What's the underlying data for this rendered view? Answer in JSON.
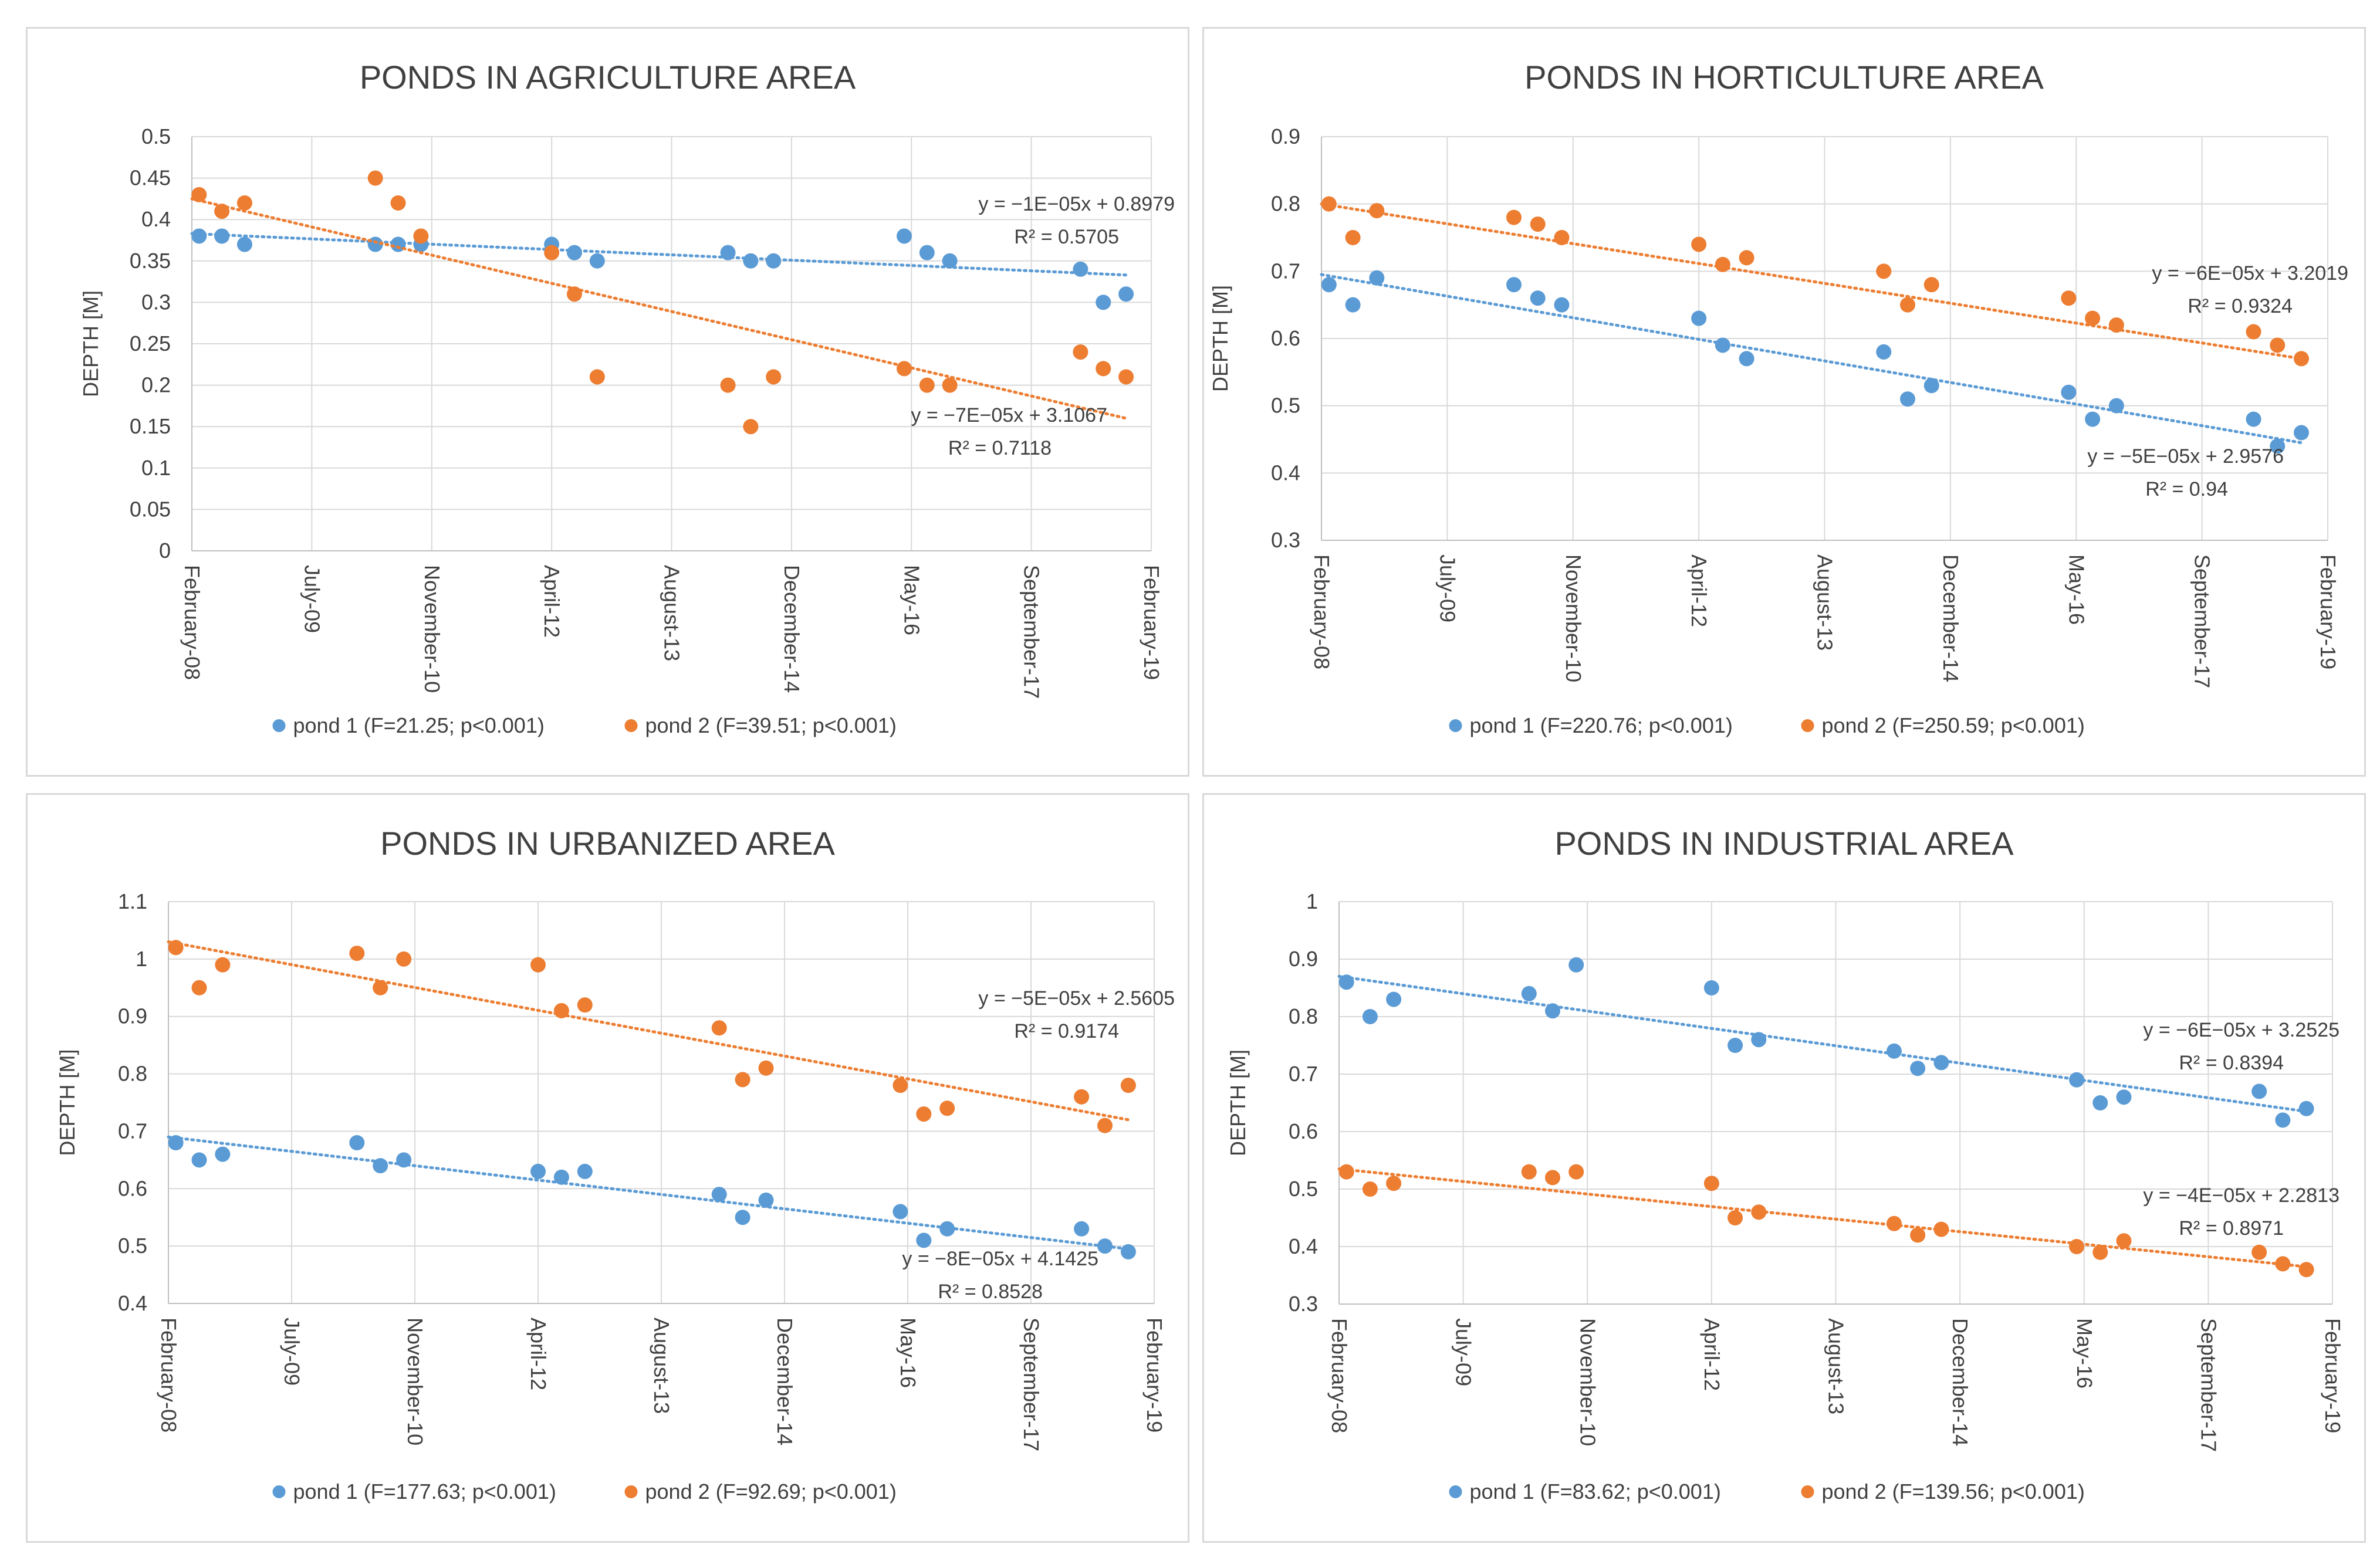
{
  "colors": {
    "pond1": "#5b9bd5",
    "pond2": "#ed7d31"
  },
  "x_categories": [
    "February-08",
    "July-09",
    "November-10",
    "April-12",
    "August-13",
    "December-14",
    "May-16",
    "September-17",
    "February-19"
  ],
  "chart_data": [
    {
      "type": "scatter",
      "title": "PONDS IN AGRICULTURE AREA",
      "xlabel": "",
      "ylabel": "DEPTH [M]",
      "ylim": [
        0,
        0.5
      ],
      "yticks": [
        "0",
        "0.05",
        "0.1",
        "0.15",
        "0.2",
        "0.25",
        "0.3",
        "0.35",
        "0.4",
        "0.45",
        "0.5"
      ],
      "xlim": [
        0,
        8
      ],
      "xticks": [
        0,
        1,
        2,
        3,
        4,
        5,
        6,
        7,
        8
      ],
      "series": [
        {
          "name": "pond 1 (F=21.25; p<0.001)",
          "color_key": "pond1",
          "x": [
            0.06,
            0.25,
            0.44,
            1.53,
            1.72,
            1.91,
            3.0,
            3.19,
            3.38,
            4.47,
            4.66,
            4.85,
            5.94,
            6.13,
            6.32,
            7.41,
            7.6,
            7.79
          ],
          "y": [
            0.38,
            0.38,
            0.37,
            0.37,
            0.37,
            0.37,
            0.37,
            0.36,
            0.35,
            0.36,
            0.35,
            0.35,
            0.38,
            0.36,
            0.35,
            0.34,
            0.3,
            0.31
          ],
          "trend": {
            "x0": 0.0,
            "y0": 0.383,
            "x1": 7.79,
            "y1": 0.333,
            "equation": "y = −1E−05x + 0.8979",
            "r2": "R² = 0.5705"
          }
        },
        {
          "name": "pond 2 (F=39.51; p<0.001)",
          "color_key": "pond2",
          "x": [
            0.06,
            0.25,
            0.44,
            1.53,
            1.72,
            1.91,
            3.0,
            3.19,
            3.38,
            4.47,
            4.66,
            4.85,
            5.94,
            6.13,
            6.32,
            7.41,
            7.6,
            7.79
          ],
          "y": [
            0.43,
            0.41,
            0.42,
            0.45,
            0.42,
            0.38,
            0.36,
            0.31,
            0.21,
            0.2,
            0.15,
            0.21,
            0.22,
            0.2,
            0.2,
            0.24,
            0.22,
            0.21
          ],
          "trend": {
            "x0": 0.0,
            "y0": 0.425,
            "x1": 7.79,
            "y1": 0.16,
            "equation": "y = −7E−05x + 3.1067",
            "r2": "R² = 0.7118"
          }
        }
      ]
    },
    {
      "type": "scatter",
      "title": "PONDS IN HORTICULTURE AREA",
      "xlabel": "",
      "ylabel": "DEPTH [M]",
      "ylim": [
        0.3,
        0.9
      ],
      "yticks": [
        "0.3",
        "0.4",
        "0.5",
        "0.6",
        "0.7",
        "0.8",
        "0.9"
      ],
      "xlim": [
        0,
        8
      ],
      "xticks": [
        0,
        1,
        2,
        3,
        4,
        5,
        6,
        7,
        8
      ],
      "series": [
        {
          "name": "pond 1 (F=220.76; p<0.001)",
          "color_key": "pond1",
          "x": [
            0.06,
            0.25,
            0.44,
            1.53,
            1.72,
            1.91,
            3.0,
            3.19,
            3.38,
            4.47,
            4.66,
            4.85,
            5.94,
            6.13,
            6.32,
            7.41,
            7.6,
            7.79
          ],
          "y": [
            0.68,
            0.65,
            0.69,
            0.68,
            0.66,
            0.65,
            0.63,
            0.59,
            0.57,
            0.58,
            0.51,
            0.53,
            0.52,
            0.48,
            0.5,
            0.48,
            0.44,
            0.46
          ],
          "trend": {
            "x0": 0.0,
            "y0": 0.695,
            "x1": 7.79,
            "y1": 0.445,
            "equation": "y = −6E−05x + 3.2019",
            "r2": "R² = 0.9324"
          }
        },
        {
          "name": "pond 2 (F=250.59; p<0.001)",
          "color_key": "pond2",
          "x": [
            0.06,
            0.25,
            0.44,
            1.53,
            1.72,
            1.91,
            3.0,
            3.19,
            3.38,
            4.47,
            4.66,
            4.85,
            5.94,
            6.13,
            6.32,
            7.41,
            7.6,
            7.79
          ],
          "y": [
            0.8,
            0.75,
            0.79,
            0.78,
            0.77,
            0.75,
            0.74,
            0.71,
            0.72,
            0.7,
            0.65,
            0.68,
            0.66,
            0.63,
            0.62,
            0.61,
            0.59,
            0.57
          ],
          "trend": {
            "x0": 0.0,
            "y0": 0.8,
            "x1": 7.79,
            "y1": 0.57,
            "equation": "y = −5E−05x + 2.9576",
            "r2": "R² = 0.94"
          }
        }
      ]
    },
    {
      "type": "scatter",
      "title": "PONDS IN URBANIZED AREA",
      "xlabel": "",
      "ylabel": "DEPTH [M]",
      "ylim": [
        0.4,
        1.1
      ],
      "yticks": [
        "0.4",
        "0.5",
        "0.6",
        "0.7",
        "0.8",
        "0.9",
        "1",
        "1.1"
      ],
      "xlim": [
        0,
        8
      ],
      "xticks": [
        0,
        1,
        2,
        3,
        4,
        5,
        6,
        7,
        8
      ],
      "series": [
        {
          "name": "pond 1 (F=177.63; p<0.001)",
          "color_key": "pond1",
          "x": [
            0.06,
            0.25,
            0.44,
            1.53,
            1.72,
            1.91,
            3.0,
            3.19,
            3.38,
            4.47,
            4.66,
            4.85,
            5.94,
            6.13,
            6.32,
            7.41,
            7.6,
            7.79
          ],
          "y": [
            0.68,
            0.65,
            0.66,
            0.68,
            0.64,
            0.65,
            0.63,
            0.62,
            0.63,
            0.59,
            0.55,
            0.58,
            0.56,
            0.51,
            0.53,
            0.53,
            0.5,
            0.49
          ],
          "trend": {
            "x0": 0.0,
            "y0": 0.69,
            "x1": 7.79,
            "y1": 0.495,
            "equation": "y = −5E−05x + 2.5605",
            "r2": "R² = 0.9174"
          }
        },
        {
          "name": "pond 2 (F=92.69; p<0.001)",
          "color_key": "pond2",
          "x": [
            0.06,
            0.25,
            0.44,
            1.53,
            1.72,
            1.91,
            3.0,
            3.19,
            3.38,
            4.47,
            4.66,
            4.85,
            5.94,
            6.13,
            6.32,
            7.41,
            7.6,
            7.79
          ],
          "y": [
            1.02,
            0.95,
            0.99,
            1.01,
            0.95,
            1.0,
            0.99,
            0.91,
            0.92,
            0.88,
            0.79,
            0.81,
            0.78,
            0.73,
            0.74,
            0.76,
            0.71,
            0.78
          ],
          "trend": {
            "x0": 0.0,
            "y0": 1.03,
            "x1": 7.79,
            "y1": 0.72,
            "equation": "y = −8E−05x + 4.1425",
            "r2": "R² = 0.8528"
          }
        }
      ]
    },
    {
      "type": "scatter",
      "title": "PONDS IN INDUSTRIAL AREA",
      "xlabel": "",
      "ylabel": "DEPTH [M]",
      "ylim": [
        0.3,
        1.0
      ],
      "yticks": [
        "0.3",
        "0.4",
        "0.5",
        "0.6",
        "0.7",
        "0.8",
        "0.9",
        "1"
      ],
      "xlim": [
        0,
        8
      ],
      "xticks": [
        0,
        1,
        2,
        3,
        4,
        5,
        6,
        7,
        8
      ],
      "series": [
        {
          "name": "pond 1 (F=83.62; p<0.001)",
          "color_key": "pond1",
          "x": [
            0.06,
            0.25,
            0.44,
            1.53,
            1.72,
            1.91,
            3.0,
            3.19,
            3.38,
            4.47,
            4.66,
            4.85,
            5.94,
            6.13,
            6.32,
            7.41,
            7.6,
            7.79
          ],
          "y": [
            0.86,
            0.8,
            0.83,
            0.84,
            0.81,
            0.89,
            0.85,
            0.75,
            0.76,
            0.74,
            0.71,
            0.72,
            0.69,
            0.65,
            0.66,
            0.67,
            0.62,
            0.64
          ],
          "trend": {
            "x0": 0.0,
            "y0": 0.87,
            "x1": 7.79,
            "y1": 0.635,
            "equation": "y = −6E−05x + 3.2525",
            "r2": "R² = 0.8394"
          }
        },
        {
          "name": "pond 2 (F=139.56; p<0.001)",
          "color_key": "pond2",
          "x": [
            0.06,
            0.25,
            0.44,
            1.53,
            1.72,
            1.91,
            3.0,
            3.19,
            3.38,
            4.47,
            4.66,
            4.85,
            5.94,
            6.13,
            6.32,
            7.41,
            7.6,
            7.79
          ],
          "y": [
            0.53,
            0.5,
            0.51,
            0.53,
            0.52,
            0.53,
            0.51,
            0.45,
            0.46,
            0.44,
            0.42,
            0.43,
            0.4,
            0.39,
            0.41,
            0.39,
            0.37,
            0.36
          ],
          "trend": {
            "x0": 0.0,
            "y0": 0.535,
            "x1": 7.79,
            "y1": 0.365,
            "equation": "y = −4E−05x + 2.2813",
            "r2": "R² = 0.8971"
          }
        }
      ]
    }
  ]
}
